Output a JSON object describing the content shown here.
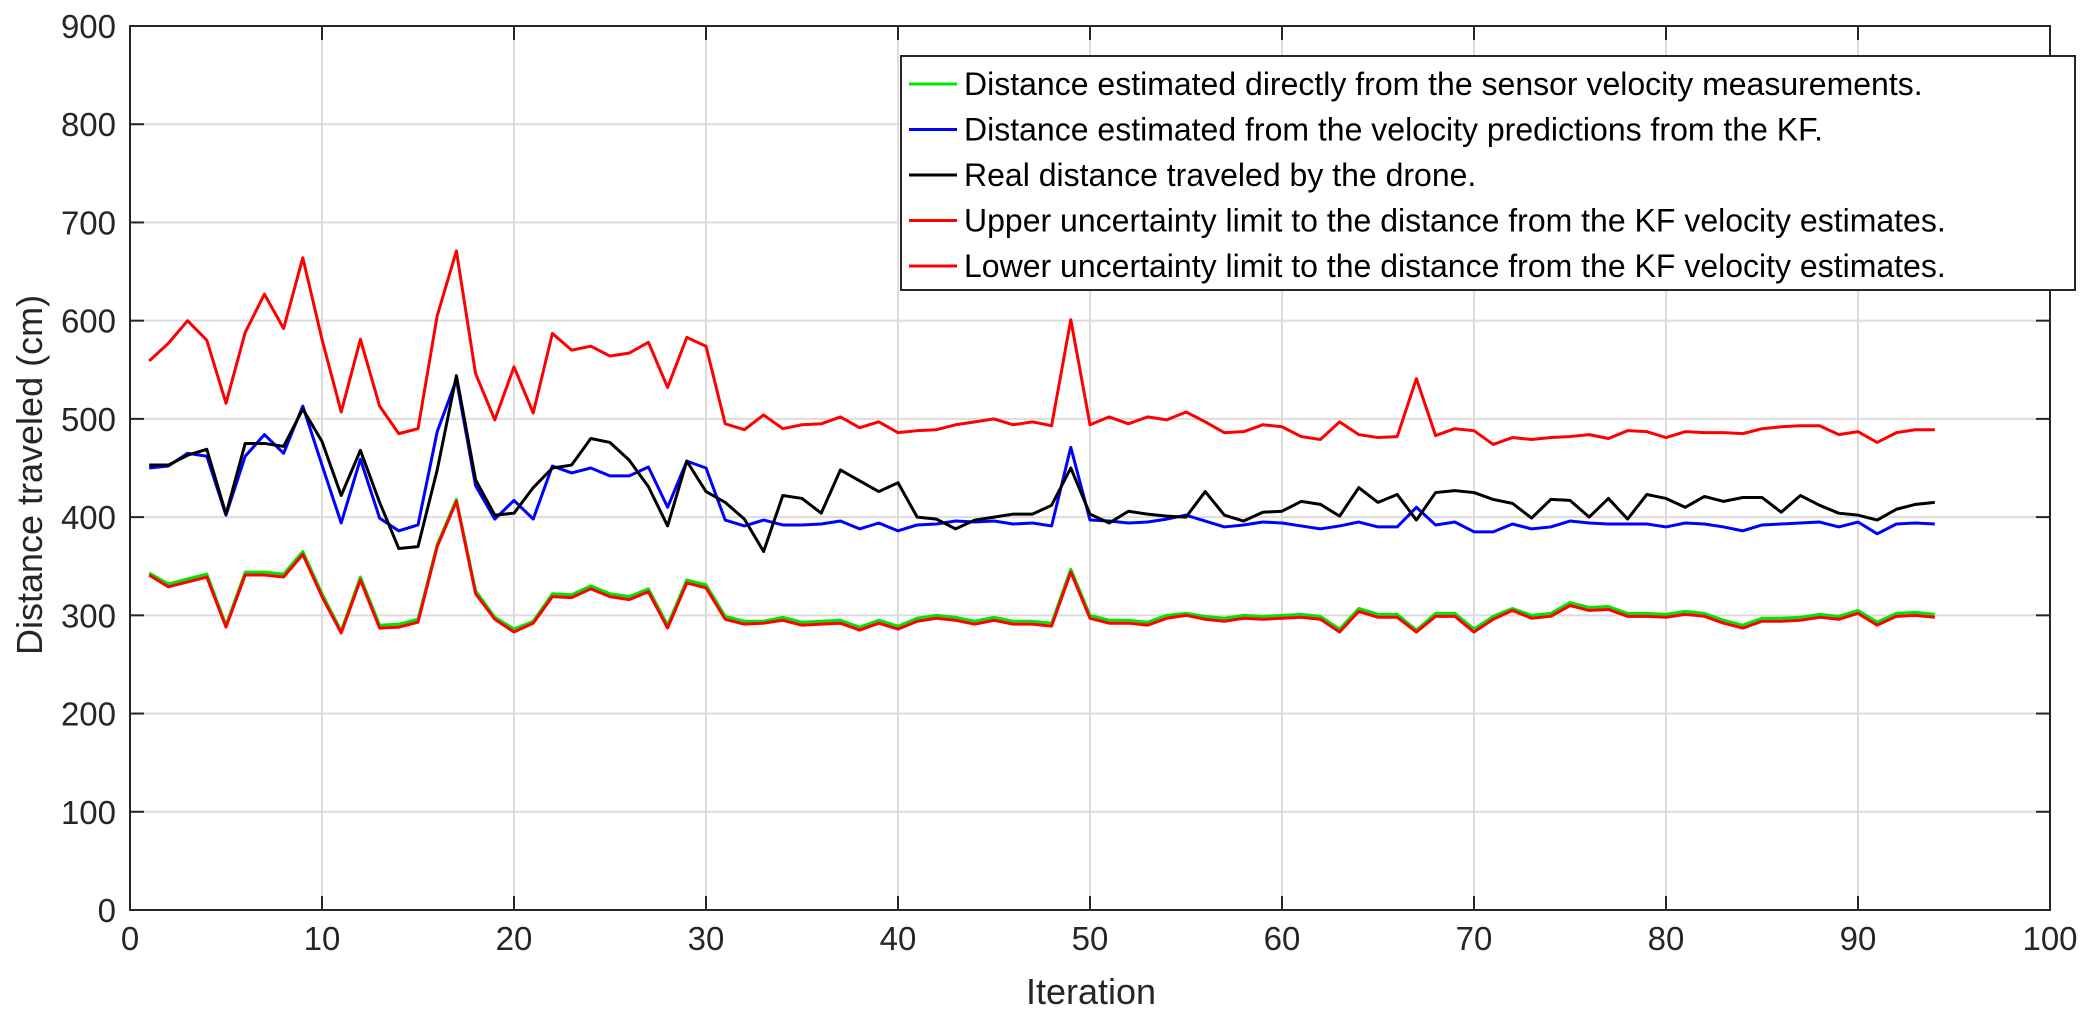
{
  "chart_data": {
    "type": "line",
    "title": "",
    "xlabel": "Iteration",
    "ylabel": "Distance traveled (cm)",
    "xlim": [
      0,
      100
    ],
    "ylim": [
      0,
      900
    ],
    "xticks": [
      0,
      10,
      20,
      30,
      40,
      50,
      60,
      70,
      80,
      90,
      100
    ],
    "yticks": [
      0,
      100,
      200,
      300,
      400,
      500,
      600,
      700,
      800,
      900
    ],
    "grid": true,
    "legend_location": "top-right",
    "x": [
      1,
      2,
      3,
      4,
      5,
      6,
      7,
      8,
      9,
      10,
      11,
      12,
      13,
      14,
      15,
      16,
      17,
      18,
      19,
      20,
      21,
      22,
      23,
      24,
      25,
      26,
      27,
      28,
      29,
      30,
      31,
      32,
      33,
      34,
      35,
      36,
      37,
      38,
      39,
      40,
      41,
      42,
      43,
      44,
      45,
      46,
      47,
      48,
      49,
      50,
      51,
      52,
      53,
      54,
      55,
      56,
      57,
      58,
      59,
      60,
      61,
      62,
      63,
      64,
      65,
      66,
      67,
      68,
      69,
      70,
      71,
      72,
      73,
      74,
      75,
      76,
      77,
      78,
      79,
      80,
      81,
      82,
      83,
      84,
      85,
      86,
      87,
      88,
      89,
      90,
      91,
      92,
      93,
      94
    ],
    "series": [
      {
        "name": "Distance estimated directly from the sensor velocity measurements.",
        "color": "#00e600",
        "values": [
          343,
          332,
          337,
          342,
          290,
          344,
          344,
          342,
          365,
          322,
          284,
          339,
          290,
          291,
          296,
          372,
          418,
          325,
          298,
          286,
          294,
          322,
          321,
          330,
          322,
          319,
          327,
          290,
          336,
          331,
          299,
          294,
          294,
          298,
          293,
          294,
          295,
          288,
          295,
          289,
          297,
          300,
          298,
          294,
          298,
          294,
          294,
          292,
          347,
          300,
          295,
          295,
          293,
          300,
          302,
          299,
          297,
          300,
          299,
          300,
          301,
          299,
          286,
          307,
          301,
          301,
          285,
          302,
          302,
          286,
          299,
          307,
          300,
          302,
          313,
          308,
          309,
          302,
          302,
          301,
          304,
          302,
          295,
          290,
          297,
          297,
          298,
          301,
          299,
          305,
          293,
          302,
          303,
          301
        ]
      },
      {
        "name": "Distance estimated from the velocity predictions from the KF.",
        "color": "#0000ff",
        "values": [
          450,
          452,
          465,
          462,
          402,
          462,
          484,
          465,
          513,
          453,
          394,
          459,
          399,
          386,
          392,
          487,
          540,
          432,
          398,
          417,
          398,
          452,
          445,
          450,
          442,
          442,
          451,
          410,
          457,
          450,
          397,
          391,
          397,
          392,
          392,
          393,
          396,
          388,
          394,
          386,
          392,
          393,
          396,
          395,
          396,
          393,
          394,
          391,
          471,
          397,
          396,
          394,
          395,
          398,
          402,
          396,
          390,
          392,
          395,
          394,
          391,
          388,
          391,
          395,
          390,
          390,
          410,
          392,
          395,
          385,
          385,
          393,
          388,
          390,
          396,
          394,
          393,
          393,
          393,
          390,
          394,
          393,
          390,
          386,
          392,
          393,
          394,
          395,
          390,
          395,
          383,
          393,
          394,
          393
        ]
      },
      {
        "name": "Real distance traveled by the drone.",
        "color": "#000000",
        "values": [
          453,
          453,
          463,
          469,
          403,
          475,
          475,
          472,
          510,
          477,
          422,
          468,
          415,
          368,
          370,
          448,
          544,
          438,
          402,
          404,
          430,
          450,
          453,
          480,
          476,
          458,
          431,
          391,
          457,
          426,
          415,
          398,
          365,
          422,
          419,
          404,
          448,
          437,
          426,
          435,
          400,
          398,
          388,
          397,
          400,
          403,
          403,
          412,
          450,
          403,
          394,
          406,
          403,
          401,
          400,
          426,
          402,
          396,
          405,
          406,
          416,
          413,
          401,
          430,
          415,
          423,
          397,
          425,
          427,
          425,
          418,
          414,
          399,
          418,
          417,
          400,
          419,
          398,
          423,
          419,
          410,
          421,
          416,
          420,
          420,
          405,
          422,
          412,
          404,
          402,
          397,
          408,
          413,
          415
        ]
      },
      {
        "name": "Upper uncertainty limit to the distance from the KF velocity estimates.",
        "color": "#ff0000",
        "values": [
          559,
          577,
          600,
          580,
          516,
          588,
          627,
          592,
          664,
          581,
          507,
          581,
          513,
          485,
          490,
          605,
          671,
          546,
          499,
          553,
          506,
          587,
          570,
          574,
          564,
          567,
          578,
          532,
          583,
          574,
          495,
          489,
          504,
          490,
          494,
          495,
          502,
          491,
          497,
          486,
          488,
          489,
          494,
          497,
          500,
          494,
          497,
          493,
          601,
          494,
          502,
          495,
          502,
          499,
          507,
          497,
          486,
          487,
          494,
          492,
          482,
          479,
          497,
          484,
          481,
          482,
          541,
          483,
          490,
          488,
          474,
          481,
          479,
          481,
          482,
          484,
          480,
          488,
          487,
          481,
          487,
          486,
          486,
          485,
          490,
          492,
          493,
          493,
          484,
          487,
          476,
          486,
          489,
          489
        ]
      },
      {
        "name": "Lower uncertainty limit to the distance from the KF velocity estimates.",
        "color": "#ff0000",
        "values": [
          341,
          329,
          334,
          339,
          288,
          341,
          341,
          339,
          362,
          319,
          282,
          336,
          287,
          288,
          293,
          370,
          416,
          322,
          296,
          283,
          292,
          319,
          318,
          327,
          319,
          316,
          324,
          287,
          333,
          328,
          296,
          291,
          292,
          295,
          290,
          291,
          292,
          285,
          292,
          286,
          294,
          297,
          295,
          291,
          295,
          291,
          291,
          289,
          344,
          297,
          292,
          292,
          290,
          297,
          300,
          296,
          294,
          297,
          296,
          297,
          298,
          296,
          283,
          304,
          298,
          298,
          283,
          299,
          299,
          283,
          296,
          305,
          297,
          299,
          310,
          305,
          306,
          299,
          299,
          298,
          301,
          299,
          292,
          287,
          294,
          294,
          295,
          298,
          296,
          302,
          290,
          299,
          300,
          298
        ]
      }
    ]
  }
}
